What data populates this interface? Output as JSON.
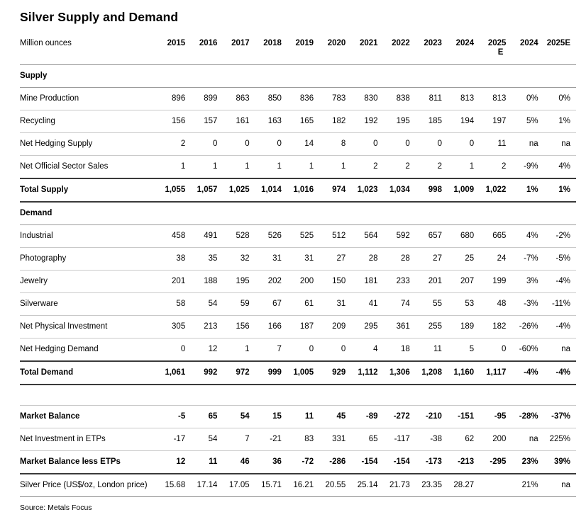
{
  "title": "Silver Supply and Demand",
  "source": "Source: Metals Focus",
  "table": {
    "unit_label": "Million ounces",
    "columns": [
      "2015",
      "2016",
      "2017",
      "2018",
      "2019",
      "2020",
      "2021",
      "2022",
      "2023",
      "2024",
      "2025\nE",
      "2024",
      "2025E"
    ],
    "rows": [
      {
        "label": "Supply",
        "style": "section",
        "values": []
      },
      {
        "label": "Mine Production",
        "style": "data",
        "values": [
          "896",
          "899",
          "863",
          "850",
          "836",
          "783",
          "830",
          "838",
          "811",
          "813",
          "813",
          "0%",
          "0%"
        ]
      },
      {
        "label": "Recycling",
        "style": "data",
        "values": [
          "156",
          "157",
          "161",
          "163",
          "165",
          "182",
          "192",
          "195",
          "185",
          "194",
          "197",
          "5%",
          "1%"
        ]
      },
      {
        "label": "Net Hedging Supply",
        "style": "data",
        "values": [
          "2",
          "0",
          "0",
          "0",
          "14",
          "8",
          "0",
          "0",
          "0",
          "0",
          "11",
          "na",
          "na"
        ]
      },
      {
        "label": "Net Official Sector Sales",
        "style": "data",
        "values": [
          "1",
          "1",
          "1",
          "1",
          "1",
          "1",
          "2",
          "2",
          "2",
          "1",
          "2",
          "-9%",
          "4%"
        ]
      },
      {
        "label": "Total Supply",
        "style": "total",
        "values": [
          "1,055",
          "1,057",
          "1,025",
          "1,014",
          "1,016",
          "974",
          "1,023",
          "1,034",
          "998",
          "1,009",
          "1,022",
          "1%",
          "1%"
        ]
      },
      {
        "label": "Demand",
        "style": "section",
        "values": []
      },
      {
        "label": "Industrial",
        "style": "data",
        "values": [
          "458",
          "491",
          "528",
          "526",
          "525",
          "512",
          "564",
          "592",
          "657",
          "680",
          "665",
          "4%",
          "-2%"
        ]
      },
      {
        "label": "Photography",
        "style": "data",
        "values": [
          "38",
          "35",
          "32",
          "31",
          "31",
          "27",
          "28",
          "28",
          "27",
          "25",
          "24",
          "-7%",
          "-5%"
        ]
      },
      {
        "label": "Jewelry",
        "style": "data",
        "values": [
          "201",
          "188",
          "195",
          "202",
          "200",
          "150",
          "181",
          "233",
          "201",
          "207",
          "199",
          "3%",
          "-4%"
        ]
      },
      {
        "label": "Silverware",
        "style": "data",
        "values": [
          "58",
          "54",
          "59",
          "67",
          "61",
          "31",
          "41",
          "74",
          "55",
          "53",
          "48",
          "-3%",
          "-11%"
        ]
      },
      {
        "label": "Net Physical Investment",
        "style": "data",
        "values": [
          "305",
          "213",
          "156",
          "166",
          "187",
          "209",
          "295",
          "361",
          "255",
          "189",
          "182",
          "-26%",
          "-4%"
        ]
      },
      {
        "label": "Net Hedging Demand",
        "style": "data",
        "values": [
          "0",
          "12",
          "1",
          "7",
          "0",
          "0",
          "4",
          "18",
          "11",
          "5",
          "0",
          "-60%",
          "na"
        ]
      },
      {
        "label": "Total Demand",
        "style": "total",
        "values": [
          "1,061",
          "992",
          "972",
          "999",
          "1,005",
          "929",
          "1,112",
          "1,306",
          "1,208",
          "1,160",
          "1,117",
          "-4%",
          "-4%"
        ]
      },
      {
        "label": "",
        "style": "spacer",
        "values": []
      },
      {
        "label": "Market Balance",
        "style": "bold",
        "values": [
          "-5",
          "65",
          "54",
          "15",
          "11",
          "45",
          "-89",
          "-272",
          "-210",
          "-151",
          "-95",
          "-28%",
          "-37%"
        ]
      },
      {
        "label": "Net Investment in ETPs",
        "style": "data",
        "values": [
          "-17",
          "54",
          "7",
          "-21",
          "83",
          "331",
          "65",
          "-117",
          "-38",
          "62",
          "200",
          "na",
          "225%"
        ]
      },
      {
        "label": "Market Balance less ETPs",
        "style": "bold_dark",
        "values": [
          "12",
          "11",
          "46",
          "36",
          "-72",
          "-286",
          "-154",
          "-154",
          "-173",
          "-213",
          "-295",
          "23%",
          "39%"
        ]
      },
      {
        "label": "Silver Price (US$/oz, London price)",
        "style": "price",
        "values": [
          "15.68",
          "17.14",
          "17.05",
          "15.71",
          "16.21",
          "20.55",
          "25.14",
          "21.73",
          "23.35",
          "28.27",
          "",
          "21%",
          "na"
        ]
      }
    ]
  }
}
